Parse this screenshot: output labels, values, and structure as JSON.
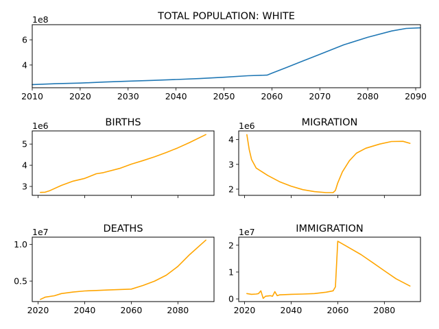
{
  "colors": {
    "population": "#1f77b4",
    "subplots": "#ffa500"
  },
  "chart_data": [
    {
      "id": "population",
      "type": "line",
      "title": "TOTAL POPULATION: WHITE",
      "offset_label": "1e8",
      "xlim": [
        2010,
        2091
      ],
      "ylim": [
        2.2,
        7.2
      ],
      "xticks": [
        {
          "v": 2010,
          "label": "2010"
        },
        {
          "v": 2020,
          "label": "2020"
        },
        {
          "v": 2030,
          "label": "2030"
        },
        {
          "v": 2040,
          "label": "2040"
        },
        {
          "v": 2050,
          "label": "2050"
        },
        {
          "v": 2060,
          "label": "2060"
        },
        {
          "v": 2070,
          "label": "2070"
        },
        {
          "v": 2080,
          "label": "2080"
        },
        {
          "v": 2090,
          "label": "2090"
        }
      ],
      "yticks": [
        {
          "v": 4,
          "label": "4"
        },
        {
          "v": 6,
          "label": "6"
        }
      ],
      "series": [
        {
          "color": "population",
          "x": [
            2010,
            2015,
            2020,
            2025,
            2030,
            2035,
            2040,
            2045,
            2050,
            2055,
            2059,
            2060,
            2063,
            2066,
            2070,
            2075,
            2080,
            2085,
            2088,
            2091
          ],
          "y": [
            2.45,
            2.52,
            2.57,
            2.65,
            2.72,
            2.78,
            2.85,
            2.93,
            3.03,
            3.15,
            3.2,
            3.35,
            3.8,
            4.25,
            4.85,
            5.6,
            6.2,
            6.7,
            6.9,
            6.95
          ]
        }
      ]
    },
    {
      "id": "births",
      "type": "line",
      "title": "BIRTHS",
      "offset_label": "1e6",
      "xlim": [
        2017.5,
        2095.5
      ],
      "ylim": [
        2.58,
        5.62
      ],
      "xticks": [
        {
          "v": 2020,
          "label": ""
        },
        {
          "v": 2040,
          "label": ""
        },
        {
          "v": 2060,
          "label": ""
        },
        {
          "v": 2080,
          "label": ""
        }
      ],
      "yticks": [
        {
          "v": 3,
          "label": "3"
        },
        {
          "v": 4,
          "label": "4"
        },
        {
          "v": 5,
          "label": "5"
        }
      ],
      "series": [
        {
          "color": "subplots",
          "x": [
            2021,
            2023,
            2025,
            2030,
            2035,
            2040,
            2045,
            2048,
            2055,
            2060,
            2065,
            2070,
            2075,
            2080,
            2085,
            2092
          ],
          "y": [
            2.72,
            2.73,
            2.8,
            3.05,
            3.25,
            3.38,
            3.6,
            3.65,
            3.85,
            4.05,
            4.22,
            4.4,
            4.6,
            4.82,
            5.07,
            5.45
          ]
        }
      ]
    },
    {
      "id": "migration",
      "type": "line",
      "title": "MIGRATION",
      "offset_label": "1e6",
      "xlim": [
        2017.5,
        2095.5
      ],
      "ylim": [
        1.75,
        4.35
      ],
      "xticks": [
        {
          "v": 2020,
          "label": ""
        },
        {
          "v": 2040,
          "label": ""
        },
        {
          "v": 2060,
          "label": ""
        },
        {
          "v": 2080,
          "label": ""
        }
      ],
      "yticks": [
        {
          "v": 2,
          "label": "2"
        },
        {
          "v": 3,
          "label": "3"
        },
        {
          "v": 4,
          "label": "4"
        }
      ],
      "series": [
        {
          "color": "subplots",
          "x": [
            2021,
            2022,
            2023,
            2025,
            2030,
            2035,
            2040,
            2045,
            2050,
            2055,
            2058,
            2059,
            2060,
            2062,
            2065,
            2068,
            2072,
            2078,
            2083,
            2088,
            2091
          ],
          "y": [
            4.2,
            3.6,
            3.2,
            2.85,
            2.55,
            2.3,
            2.12,
            1.98,
            1.9,
            1.86,
            1.86,
            1.95,
            2.25,
            2.7,
            3.15,
            3.45,
            3.65,
            3.82,
            3.92,
            3.93,
            3.85
          ]
        }
      ]
    },
    {
      "id": "deaths",
      "type": "line",
      "title": "DEATHS",
      "offset_label": "1e7",
      "xlim": [
        2017.5,
        2095.5
      ],
      "ylim": [
        0.22,
        1.1
      ],
      "xticks": [
        {
          "v": 2020,
          "label": "2020"
        },
        {
          "v": 2040,
          "label": "2040"
        },
        {
          "v": 2060,
          "label": "2060"
        },
        {
          "v": 2080,
          "label": "2080"
        }
      ],
      "yticks": [
        {
          "v": 0.5,
          "label": "0.5"
        },
        {
          "v": 1.0,
          "label": "1.0"
        }
      ],
      "series": [
        {
          "color": "subplots",
          "x": [
            2021,
            2023,
            2027,
            2030,
            2035,
            2040,
            2045,
            2050,
            2055,
            2060,
            2065,
            2070,
            2075,
            2080,
            2085,
            2092
          ],
          "y": [
            0.25,
            0.28,
            0.3,
            0.33,
            0.35,
            0.365,
            0.372,
            0.378,
            0.385,
            0.39,
            0.44,
            0.5,
            0.58,
            0.7,
            0.86,
            1.06
          ]
        }
      ]
    },
    {
      "id": "immigration",
      "type": "line",
      "title": "IMMIGRATION",
      "offset_label": "1e7",
      "xlim": [
        2017.5,
        2095.5
      ],
      "ylim": [
        -0.1,
        2.3
      ],
      "xticks": [
        {
          "v": 2020,
          "label": "2020"
        },
        {
          "v": 2040,
          "label": "2040"
        },
        {
          "v": 2060,
          "label": "2060"
        },
        {
          "v": 2080,
          "label": "2080"
        }
      ],
      "yticks": [
        {
          "v": 0,
          "label": "0"
        },
        {
          "v": 1,
          "label": "1"
        },
        {
          "v": 2,
          "label": "2"
        }
      ],
      "series": [
        {
          "color": "subplots",
          "x": [
            2021,
            2023,
            2025,
            2026,
            2027,
            2028,
            2029,
            2031,
            2032,
            2033,
            2034,
            2035,
            2040,
            2045,
            2050,
            2055,
            2058,
            2059,
            2060,
            2062,
            2065,
            2070,
            2075,
            2080,
            2085,
            2091
          ],
          "y": [
            0.2,
            0.17,
            0.18,
            0.2,
            0.3,
            0.02,
            0.1,
            0.12,
            0.1,
            0.27,
            0.12,
            0.15,
            0.17,
            0.18,
            0.2,
            0.25,
            0.3,
            0.45,
            2.15,
            2.05,
            1.9,
            1.65,
            1.35,
            1.05,
            0.75,
            0.48
          ]
        }
      ]
    }
  ]
}
